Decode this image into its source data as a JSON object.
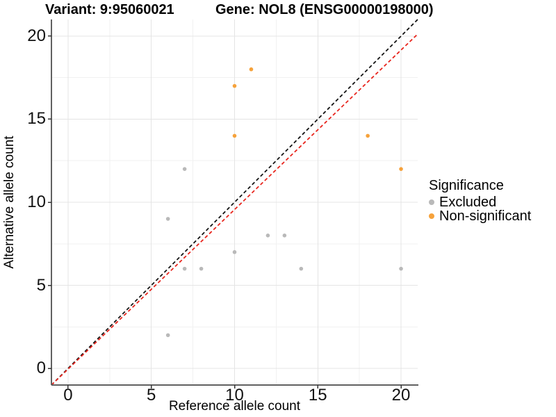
{
  "title": {
    "variant": "Variant: 9:95060021",
    "gene": "Gene: NOL8 (ENSG00000198000)"
  },
  "chart_data": {
    "type": "scatter",
    "xlabel": "Reference allele count",
    "ylabel": "Alternative allele count",
    "xlim": [
      -1,
      21
    ],
    "ylim": [
      -1,
      21
    ],
    "x_ticks": [
      0,
      5,
      10,
      15,
      20
    ],
    "y_ticks": [
      0,
      5,
      10,
      15,
      20
    ],
    "x_minor_ticks": [
      2.5,
      7.5,
      12.5,
      17.5
    ],
    "y_minor_ticks": [
      2.5,
      7.5,
      12.5,
      17.5
    ],
    "grid": true,
    "colors": {
      "excluded": "#b9b9b9",
      "non_significant": "#f6a23b",
      "identity_line": "#141414",
      "fit_line": "#e8251d",
      "grid_major": "#e4e4e4",
      "grid_minor": "#f1f1f1",
      "axis_line": "#616161",
      "tick_mark": "#333333"
    },
    "series": [
      {
        "name": "Excluded",
        "color": "#b9b9b9",
        "points": [
          [
            6,
            2
          ],
          [
            6,
            9
          ],
          [
            7,
            6
          ],
          [
            7,
            12
          ],
          [
            8,
            6
          ],
          [
            10,
            7
          ],
          [
            12,
            8
          ],
          [
            13,
            8
          ],
          [
            14,
            6
          ],
          [
            20,
            6
          ]
        ]
      },
      {
        "name": "Non-significant",
        "color": "#f6a23b",
        "points": [
          [
            10,
            14
          ],
          [
            10,
            17
          ],
          [
            11,
            18
          ],
          [
            18,
            14
          ],
          [
            20,
            12
          ]
        ]
      }
    ],
    "lines": [
      {
        "name": "identity-line",
        "color": "#141414",
        "dash": "5 3.5",
        "x1": -1,
        "y1": -1,
        "x2": 21,
        "y2": 21
      },
      {
        "name": "fit-line",
        "color": "#e8251d",
        "dash": "5 3.5",
        "x1": -1,
        "y1": -1,
        "x2": 21,
        "y2": 20.12
      }
    ],
    "legend": {
      "title": "Significance",
      "position": "right",
      "entries": [
        {
          "label": "Excluded",
          "color": "#b9b9b9"
        },
        {
          "label": "Non-significant",
          "color": "#f6a23b"
        }
      ]
    }
  }
}
